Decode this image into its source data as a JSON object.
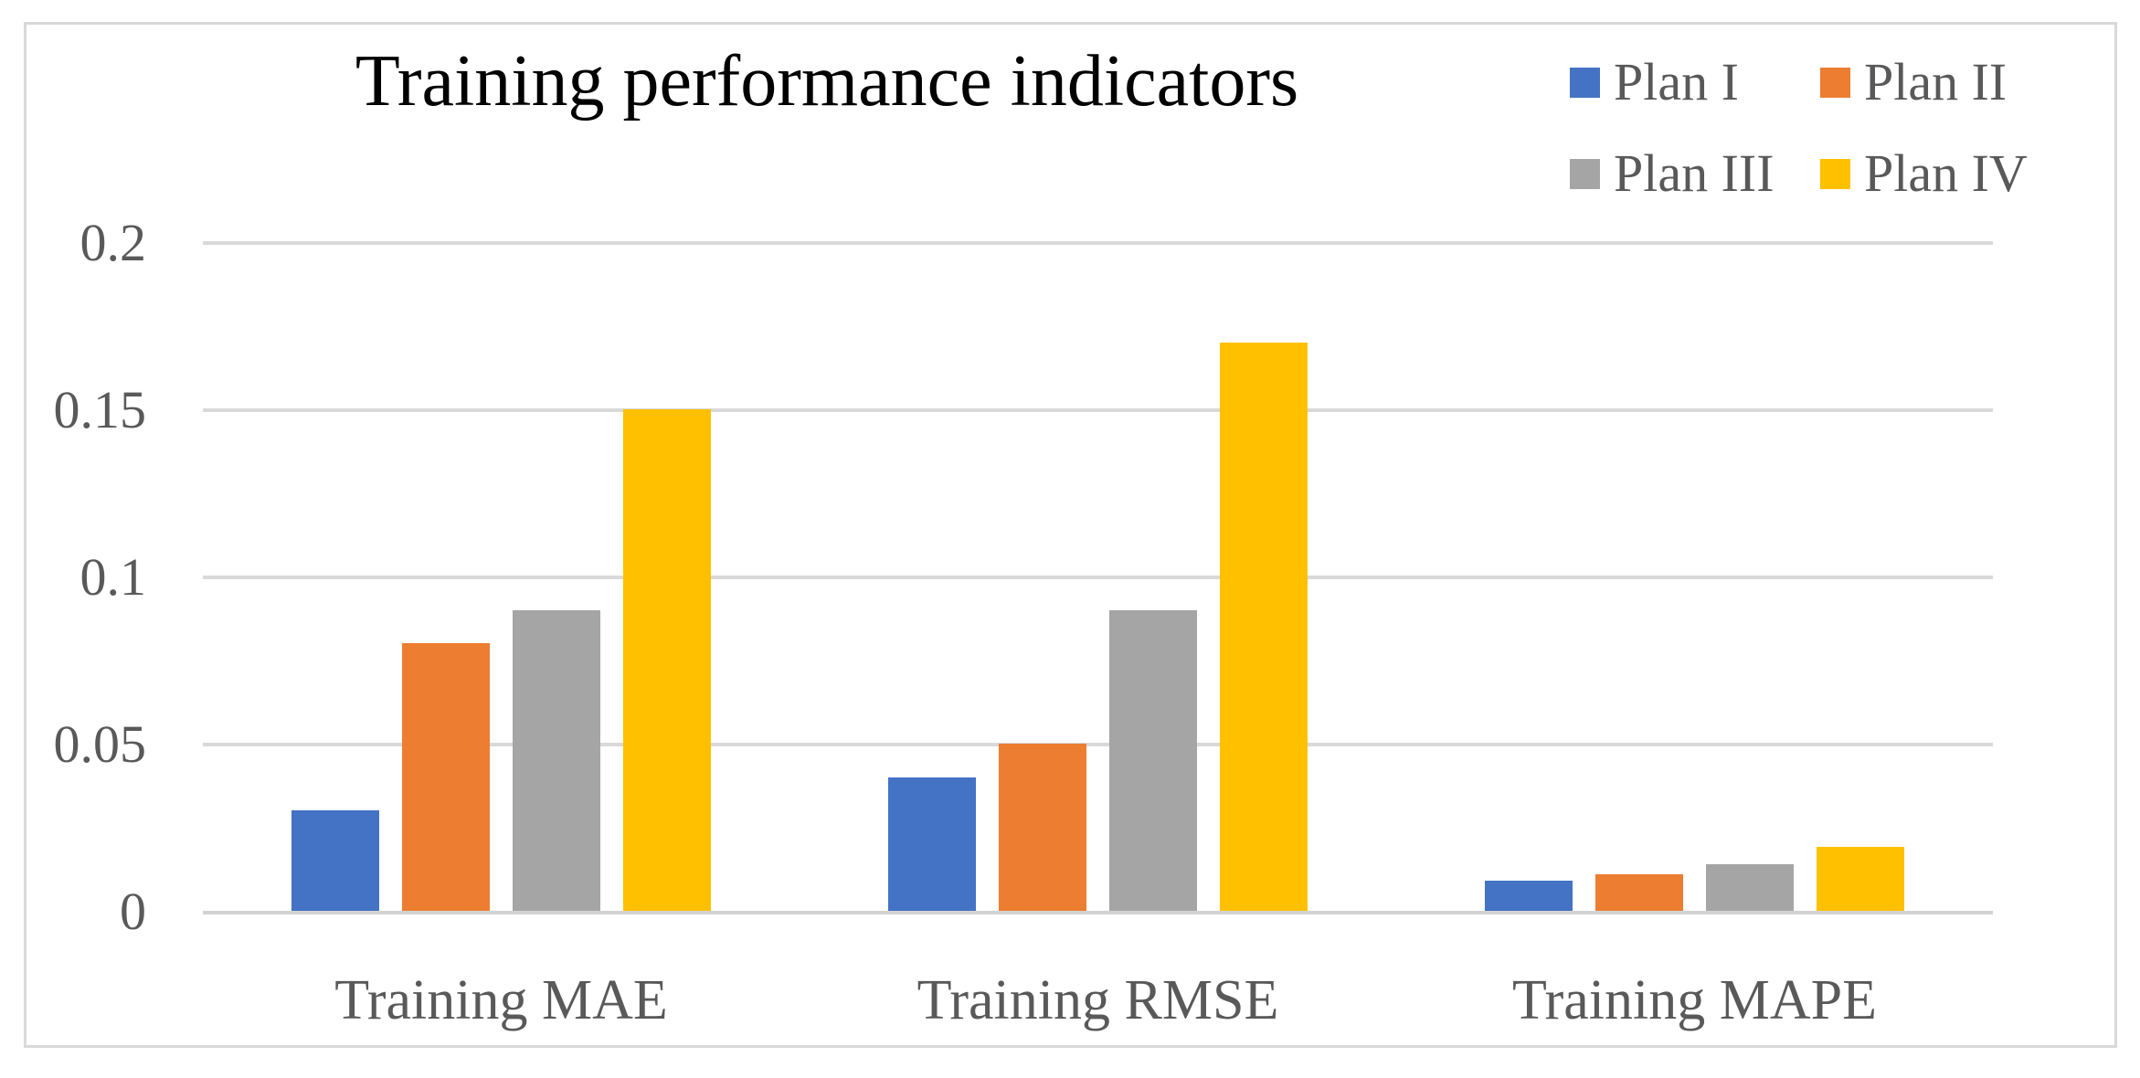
{
  "chart_data": {
    "type": "bar",
    "title": "Training performance indicators",
    "categories": [
      "Training MAE",
      "Training RMSE",
      "Training MAPE"
    ],
    "series": [
      {
        "name": "Plan I",
        "color": "#4472C4",
        "values": [
          0.03,
          0.04,
          0.009
        ]
      },
      {
        "name": "Plan II",
        "color": "#ED7D31",
        "values": [
          0.08,
          0.05,
          0.011
        ]
      },
      {
        "name": "Plan III",
        "color": "#A5A5A5",
        "values": [
          0.09,
          0.09,
          0.014
        ]
      },
      {
        "name": "Plan IV",
        "color": "#FFC000",
        "values": [
          0.15,
          0.17,
          0.019
        ]
      }
    ],
    "xlabel": "",
    "ylabel": "",
    "ylim": [
      0,
      0.2
    ],
    "yticks": [
      {
        "label": "0",
        "value": 0
      },
      {
        "label": "0.05",
        "value": 0.05
      },
      {
        "label": "0.1",
        "value": 0.1
      },
      {
        "label": "0.15",
        "value": 0.15
      },
      {
        "label": "0.2",
        "value": 0.2
      }
    ],
    "grid": true,
    "legend_position": "top-right",
    "theme": {
      "text_color": "#595959",
      "title_color": "#000000",
      "gridline_color": "#D9D9D9",
      "axis_line_color": "#D3D3D3",
      "frame_border_color": "#D9D9D9",
      "background_color": "#FFFFFF"
    }
  }
}
